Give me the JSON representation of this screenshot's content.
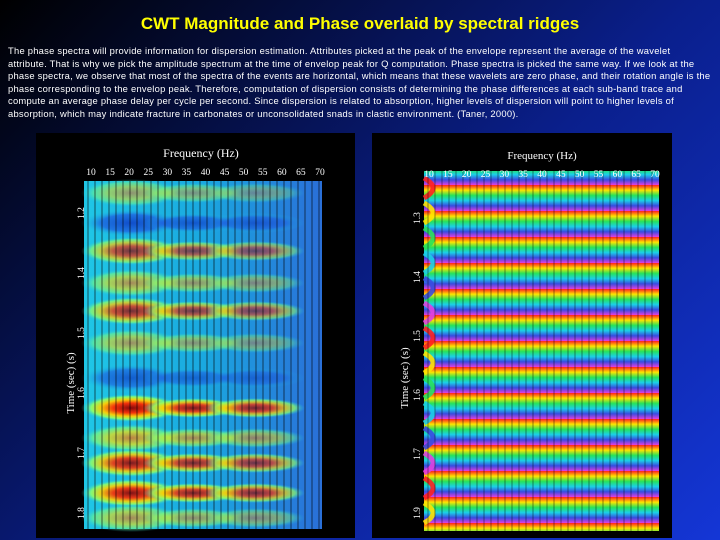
{
  "slide": {
    "title": "CWT Magnitude and Phase overlaid by spectral ridges",
    "body": "The phase spectra will provide information for dispersion estimation. Attributes picked at the peak of the envelope represent the average of the wavelet attribute. That is why we pick the amplitude spectrum at the time of envelop peak for Q computation. Phase spectra is picked the same way. If we look at the phase spectra, we observe that most of the spectra of the events are horizontal, which means that these wavelets are zero phase, and their rotation angle is the phase corresponding to the envelop peak. Therefore, computation of dispersion consists of determining the phase differences at each sub-band trace and compute an average phase delay per cycle per second. Since dispersion is related to absorption, higher levels of dispersion will point to higher levels of absorption, which may indicate fracture in carbonates or unconsolidated snads in clastic environment. (Taner, 2000)."
  },
  "magnitude_panel": {
    "x_title": "Frequency (Hz)",
    "x_ticks": [
      "10",
      "15",
      "20",
      "25",
      "30",
      "35",
      "40",
      "45",
      "50",
      "55",
      "60",
      "65",
      "70"
    ],
    "y_title": "Time (sec) (s)",
    "y_ticks": [
      "1.2",
      "1.4",
      "1.5",
      "1.6",
      "1.7",
      "1.8"
    ]
  },
  "phase_panel": {
    "x_title": "Frequency (Hz)",
    "x_ticks": [
      "10",
      "15",
      "20",
      "25",
      "30",
      "35",
      "40",
      "45",
      "50",
      "55",
      "60",
      "65",
      "70"
    ],
    "y_title": "Time (sec) (s)",
    "y_ticks": [
      "1.3",
      "1.4",
      "1.5",
      "1.6",
      "1.7",
      "1.9"
    ]
  },
  "colors": {
    "title": "#ffff00",
    "background_dark": "#000000",
    "background_blue": "#1436d6"
  }
}
